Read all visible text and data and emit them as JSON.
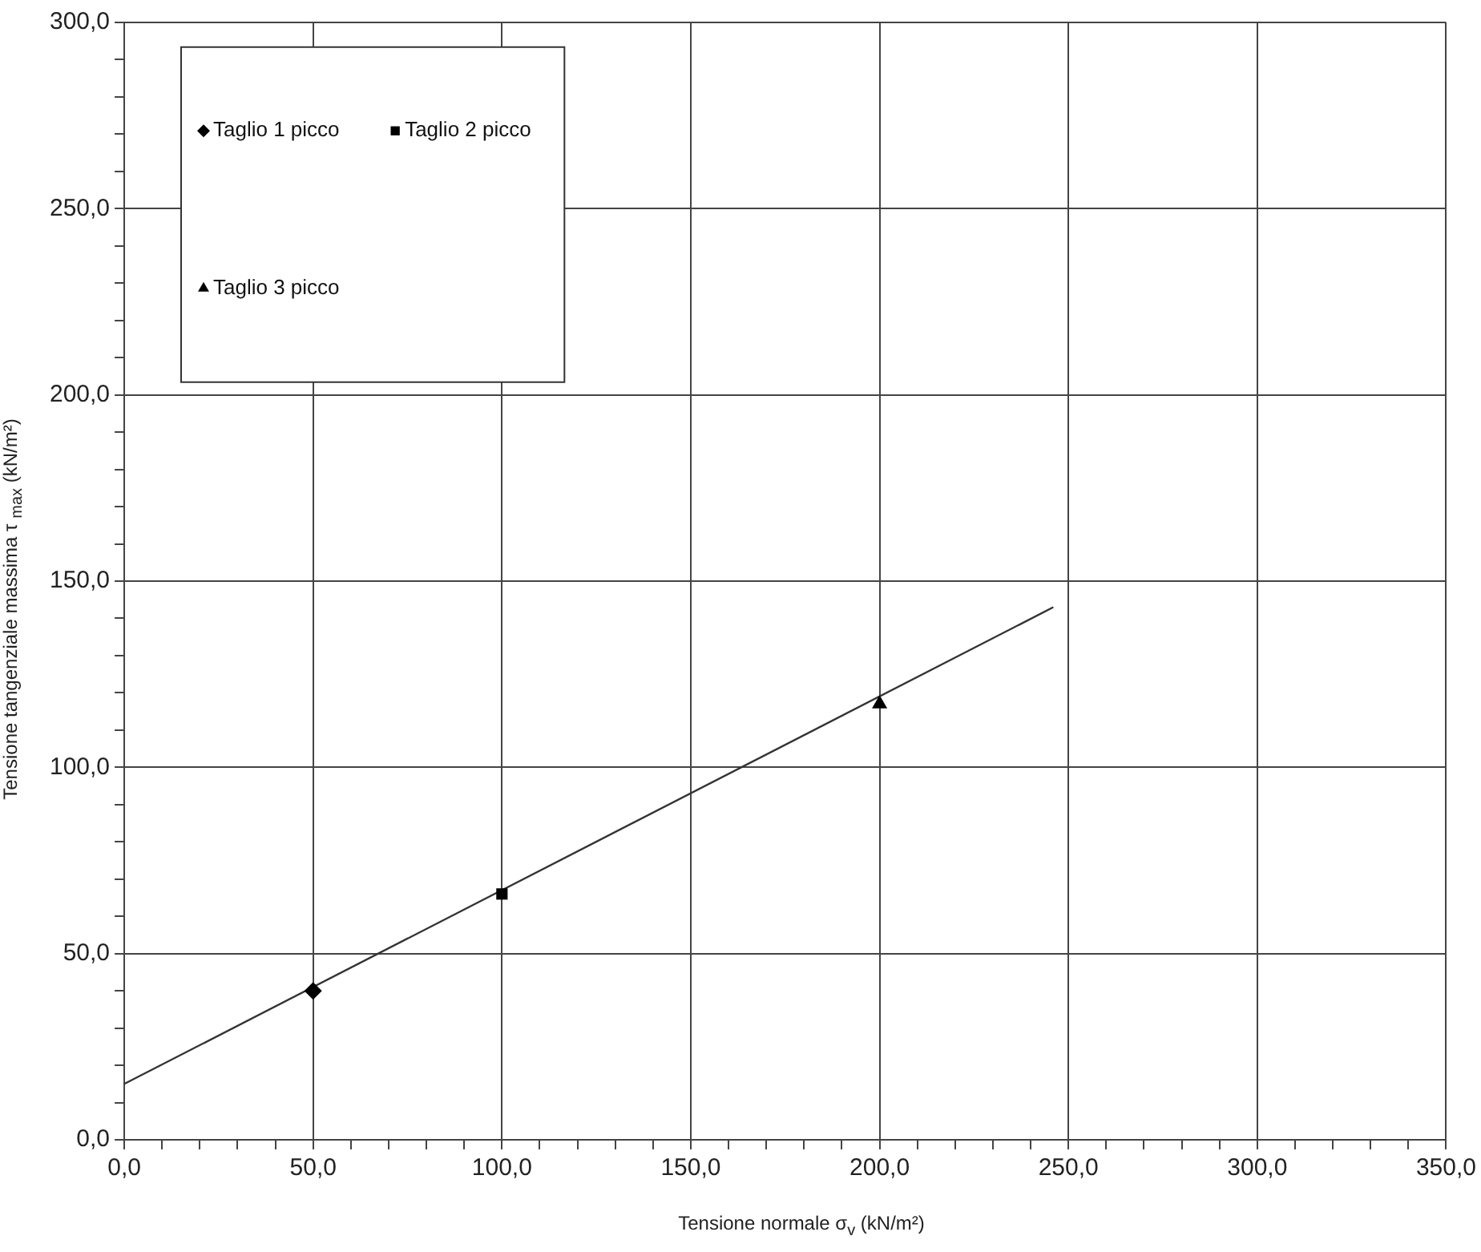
{
  "chart_data": {
    "type": "scatter",
    "xlabel": "Tensione normale σ$_{v}$ (kN/m²)",
    "ylabel": "Tensione tangenziale massima τ $_{max}$  (kN/m²)",
    "series": [
      {
        "name": "Taglio 1 picco",
        "color": "#000000",
        "marker": "diamond",
        "x": [
          50
        ],
        "values": [
          40
        ]
      },
      {
        "name": "Taglio 2 picco",
        "color": "#000000",
        "marker": "square",
        "x": [
          100
        ],
        "values": [
          66
        ]
      },
      {
        "name": "Taglio 3 picco",
        "color": "#000000",
        "marker": "triangle",
        "x": [
          200
        ],
        "values": [
          117
        ]
      },
      {
        "type": "line",
        "color": "#333333",
        "marker": "none",
        "x": [
          0,
          246
        ],
        "values": [
          15,
          143
        ]
      }
    ],
    "xlim": [
      0,
      350
    ],
    "xticks": [
      {
        "value": 0,
        "label": "0,0"
      },
      {
        "value": 10,
        "label": null
      },
      {
        "value": 20,
        "label": null
      },
      {
        "value": 30,
        "label": null
      },
      {
        "value": 40,
        "label": null
      },
      {
        "value": 50,
        "label": "50,0"
      },
      {
        "value": 60,
        "label": null
      },
      {
        "value": 70,
        "label": null
      },
      {
        "value": 80,
        "label": null
      },
      {
        "value": 90,
        "label": null
      },
      {
        "value": 100,
        "label": "100,0"
      },
      {
        "value": 110,
        "label": null
      },
      {
        "value": 120,
        "label": null
      },
      {
        "value": 130,
        "label": null
      },
      {
        "value": 140,
        "label": null
      },
      {
        "value": 150,
        "label": "150,0"
      },
      {
        "value": 160,
        "label": null
      },
      {
        "value": 170,
        "label": null
      },
      {
        "value": 180,
        "label": null
      },
      {
        "value": 190,
        "label": null
      },
      {
        "value": 200,
        "label": "200,0"
      },
      {
        "value": 210,
        "label": null
      },
      {
        "value": 220,
        "label": null
      },
      {
        "value": 230,
        "label": null
      },
      {
        "value": 240,
        "label": null
      },
      {
        "value": 250,
        "label": "250,0"
      },
      {
        "value": 260,
        "label": null
      },
      {
        "value": 270,
        "label": null
      },
      {
        "value": 280,
        "label": null
      },
      {
        "value": 290,
        "label": null
      },
      {
        "value": 300,
        "label": "300,0"
      },
      {
        "value": 310,
        "label": null
      },
      {
        "value": 320,
        "label": null
      },
      {
        "value": 330,
        "label": null
      },
      {
        "value": 340,
        "label": null
      },
      {
        "value": 350,
        "label": "350,0"
      }
    ],
    "ylim": [
      0,
      300
    ],
    "yticks": [
      {
        "value": 0,
        "label": "0,0"
      },
      {
        "value": 10,
        "label": null
      },
      {
        "value": 20,
        "label": null
      },
      {
        "value": 30,
        "label": null
      },
      {
        "value": 40,
        "label": null
      },
      {
        "value": 50,
        "label": "50,0"
      },
      {
        "value": 60,
        "label": null
      },
      {
        "value": 70,
        "label": null
      },
      {
        "value": 80,
        "label": null
      },
      {
        "value": 90,
        "label": null
      },
      {
        "value": 100,
        "label": "100,0"
      },
      {
        "value": 110,
        "label": null
      },
      {
        "value": 120,
        "label": null
      },
      {
        "value": 130,
        "label": null
      },
      {
        "value": 140,
        "label": null
      },
      {
        "value": 150,
        "label": "150,0"
      },
      {
        "value": 160,
        "label": null
      },
      {
        "value": 170,
        "label": null
      },
      {
        "value": 180,
        "label": null
      },
      {
        "value": 190,
        "label": null
      },
      {
        "value": 200,
        "label": "200,0"
      },
      {
        "value": 210,
        "label": null
      },
      {
        "value": 220,
        "label": null
      },
      {
        "value": 230,
        "label": null
      },
      {
        "value": 240,
        "label": null
      },
      {
        "value": 250,
        "label": "250,0"
      },
      {
        "value": 260,
        "label": null
      },
      {
        "value": 270,
        "label": null
      },
      {
        "value": 280,
        "label": null
      },
      {
        "value": 290,
        "label": null
      },
      {
        "value": 300,
        "label": "300,0"
      }
    ],
    "grid": true,
    "legend": "top left"
  }
}
